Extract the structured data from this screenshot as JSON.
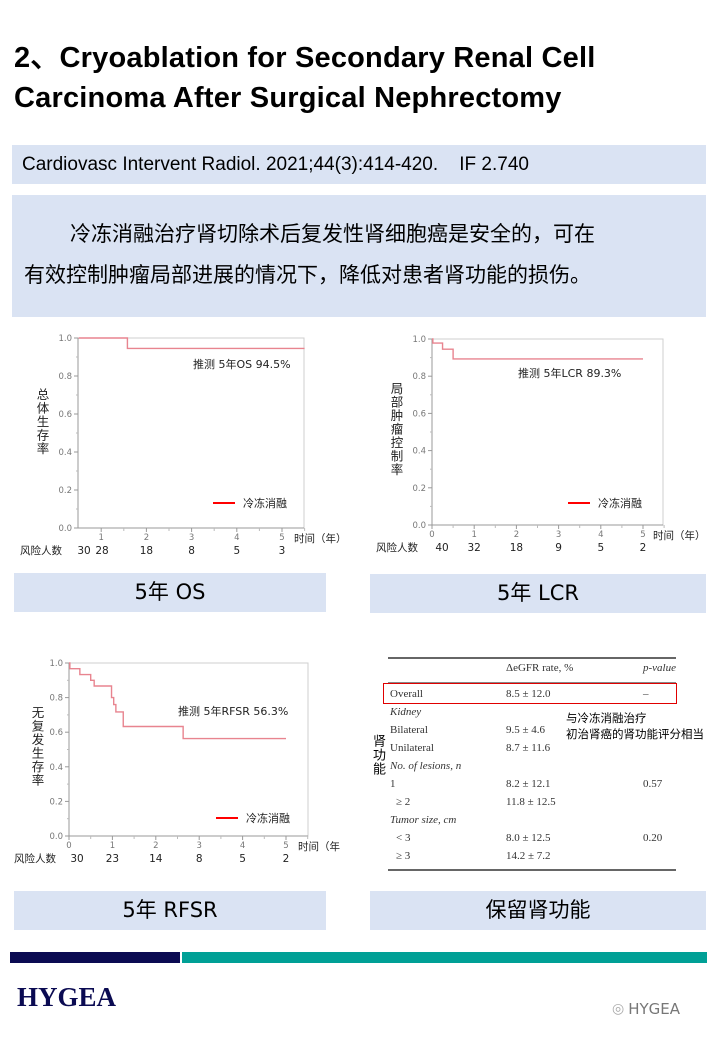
{
  "title": {
    "line1": "2、Cryoablation for Secondary Renal Cell",
    "line2": "Carcinoma After Surgical Nephrectomy"
  },
  "citation": "Cardiovasc Intervent Radiol. 2021;44(3):414-420.    IF 2.740",
  "summary": {
    "line1": "冷冻消融治疗肾切除术后复发性肾细胞癌是安全的，可在",
    "line2": "有效控制肿瘤局部进展的情况下，降低对患者肾功能的损伤。"
  },
  "captions": {
    "os": "5年 OS",
    "lcr": "5年 LCR",
    "rfsr": "5年 RFSR",
    "renal": "保留肾功能"
  },
  "colors": {
    "band": "#dae3f3",
    "curve": "#e8848f",
    "legend": "#ff0000",
    "navy": "#0b0b52",
    "teal": "#00a096"
  },
  "chart_data": [
    {
      "type": "line",
      "ylabel": "总体生存率",
      "xlabel": "时间（年）",
      "xlim": [
        0.5,
        5.5
      ],
      "ylim": [
        0,
        1
      ],
      "xticks": [
        1,
        2,
        3,
        4,
        5
      ],
      "yticks": [
        "0.0",
        "0.2",
        "0.4",
        "0.6",
        "0.8",
        "1.0"
      ],
      "annotation": "推测 5年OS 94.5%",
      "legend": "冷冻消融",
      "series": [
        {
          "name": "冷冻消融",
          "step": true,
          "x": [
            0.5,
            1.58,
            5.5
          ],
          "y": [
            1.0,
            0.945,
            0.945
          ]
        }
      ],
      "risk_label": "风险人数",
      "risk": [
        "30",
        "28",
        "18",
        "8",
        "5",
        "3"
      ]
    },
    {
      "type": "line",
      "ylabel": "局部肿瘤控制率",
      "xlabel": "时间（年）",
      "xlim": [
        0,
        5.5
      ],
      "ylim": [
        0,
        1
      ],
      "xticks": [
        0,
        1,
        2,
        3,
        4,
        5
      ],
      "yticks": [
        "0.0",
        "0.2",
        "0.4",
        "0.6",
        "0.8",
        "1.0"
      ],
      "annotation": "推测 5年LCR 89.3%",
      "legend": "冷冻消融",
      "series": [
        {
          "name": "冷冻消融",
          "step": true,
          "x": [
            0,
            0.02,
            0.25,
            0.5,
            5
          ],
          "y": [
            1.0,
            0.978,
            0.945,
            0.893,
            0.893
          ]
        }
      ],
      "risk_label": "风险人数",
      "risk": [
        "40",
        "32",
        "18",
        "9",
        "5",
        "2"
      ]
    },
    {
      "type": "line",
      "ylabel": "无复发生存率",
      "xlabel": "时间（年",
      "xlim": [
        0,
        5.5
      ],
      "ylim": [
        0,
        1
      ],
      "xticks": [
        0,
        1,
        2,
        3,
        4,
        5
      ],
      "yticks": [
        "0.0",
        "0.2",
        "0.4",
        "0.6",
        "0.8",
        "1.0"
      ],
      "annotation": "推测 5年RFSR 56.3%",
      "legend": "冷冻消融",
      "series": [
        {
          "name": "冷冻消融",
          "step": true,
          "x": [
            0,
            0.02,
            0.25,
            0.5,
            0.58,
            0.98,
            1.03,
            1.08,
            1.25,
            2.63,
            5
          ],
          "y": [
            1.0,
            0.967,
            0.933,
            0.9,
            0.867,
            0.8,
            0.76,
            0.717,
            0.633,
            0.563,
            0.563
          ]
        }
      ],
      "risk_label": "风险人数",
      "risk": [
        "30",
        "23",
        "14",
        "8",
        "5",
        "2"
      ]
    }
  ],
  "kidney_table": {
    "side_label": "肾功能",
    "note": {
      "line1": "与冷冻消融治疗",
      "line2": "初治肾癌的肾功能评分相当"
    },
    "headers": [
      "",
      "ΔeGFR rate, %",
      "p-value"
    ],
    "rows": [
      {
        "c1": "Overall",
        "c2": "8.5 ± 12.0",
        "c3": "–"
      },
      {
        "c1": "Kidney",
        "c2": "",
        "c3": "",
        "group": true
      },
      {
        "c1": "Bilateral",
        "c2": "9.5 ± 4.6",
        "c3": ""
      },
      {
        "c1": "Unilateral",
        "c2": "8.7 ± 11.6",
        "c3": ""
      },
      {
        "c1": "No. of lesions, n",
        "c2": "",
        "c3": "",
        "group": true
      },
      {
        "c1": "1",
        "c2": "8.2 ± 12.1",
        "c3": "0.57"
      },
      {
        "c1": "≥ 2",
        "c2": "11.8 ± 12.5",
        "c3": ""
      },
      {
        "c1": "Tumor size, cm",
        "c2": "",
        "c3": "",
        "group": true
      },
      {
        "c1": "< 3",
        "c2": "8.0 ± 12.5",
        "c3": "0.20"
      },
      {
        "c1": "≥ 3",
        "c2": "14.2 ± 7.2",
        "c3": ""
      }
    ]
  },
  "footer": {
    "logo": "HYGEA",
    "watermark": "HYGEA",
    "watermark_icon": "wechat-icon"
  }
}
